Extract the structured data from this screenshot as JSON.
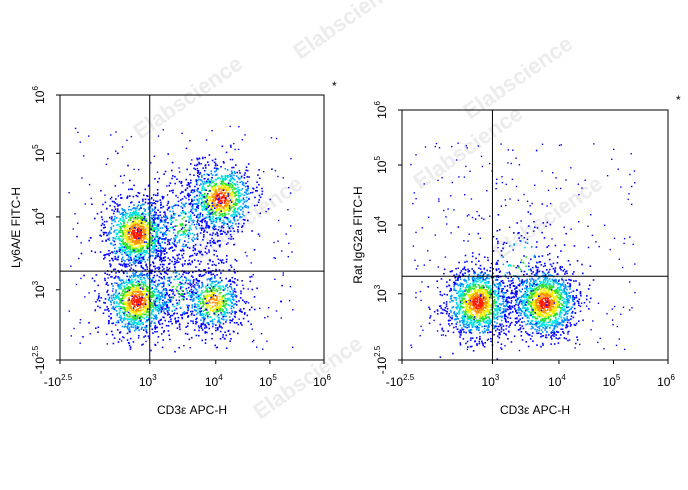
{
  "watermark": "Elabscience",
  "colors": {
    "density": [
      "#0000ff",
      "#0090ff",
      "#00e0e0",
      "#30e030",
      "#f0f000",
      "#ff9000",
      "#ff1a00"
    ],
    "frame": "#000000"
  },
  "chart_data": [
    {
      "type": "scatter",
      "subtype": "flow-cytometry-density-dot-plot",
      "title": "",
      "xlabel": "CD3ε APC-H",
      "ylabel": "Ly6A/E FITC-H",
      "x_scale": "biexponential",
      "y_scale": "biexponential",
      "x_ticks": [
        {
          "base": "-10",
          "exp": "2.5"
        },
        {
          "base": "10",
          "exp": "3"
        },
        {
          "base": "10",
          "exp": "4"
        },
        {
          "base": "10",
          "exp": "5"
        },
        {
          "base": "10",
          "exp": "6"
        }
      ],
      "y_ticks": [
        {
          "base": "-10",
          "exp": "2.5"
        },
        {
          "base": "10",
          "exp": "3"
        },
        {
          "base": "10",
          "exp": "4"
        },
        {
          "base": "10",
          "exp": "5"
        },
        {
          "base": "10",
          "exp": "6"
        }
      ],
      "x_range": [
        -316,
        1000000
      ],
      "y_range": [
        -316,
        1000000
      ],
      "quadrant_gate": {
        "x": 1000,
        "y": 1800
      },
      "corner_mark": "*",
      "populations": [
        {
          "x": 150,
          "y": 6000,
          "count": 1100,
          "peak": "high"
        },
        {
          "x": 150,
          "y": 150,
          "count": 1100,
          "peak": "high"
        },
        {
          "x": 12000,
          "y": 20000,
          "count": 900,
          "peak": "high"
        },
        {
          "x": 9000,
          "y": 150,
          "count": 650,
          "peak": "medium"
        },
        {
          "x": 3000,
          "y": 8000,
          "count": 450,
          "peak": "low"
        },
        {
          "x": 2500,
          "y": 600,
          "count": 250,
          "peak": "low"
        }
      ]
    },
    {
      "type": "scatter",
      "subtype": "flow-cytometry-density-dot-plot",
      "title": "",
      "xlabel": "CD3ε APC-H",
      "ylabel": "Rat IgG2a FITC-H",
      "x_scale": "biexponential",
      "y_scale": "biexponential",
      "x_ticks": [
        {
          "base": "-10",
          "exp": "2.5"
        },
        {
          "base": "10",
          "exp": "3"
        },
        {
          "base": "10",
          "exp": "4"
        },
        {
          "base": "10",
          "exp": "5"
        },
        {
          "base": "10",
          "exp": "6"
        }
      ],
      "y_ticks": [
        {
          "base": "-10",
          "exp": "2.5"
        },
        {
          "base": "10",
          "exp": "3"
        },
        {
          "base": "10",
          "exp": "4"
        },
        {
          "base": "10",
          "exp": "5"
        },
        {
          "base": "10",
          "exp": "6"
        }
      ],
      "x_range": [
        -316,
        1000000
      ],
      "y_range": [
        -316,
        1000000
      ],
      "quadrant_gate": {
        "x": 1000,
        "y": 1800
      },
      "corner_mark": "*",
      "populations": [
        {
          "x": 120,
          "y": 200,
          "count": 1300,
          "peak": "high"
        },
        {
          "x": 6000,
          "y": 200,
          "count": 1300,
          "peak": "high"
        },
        {
          "x": 2500,
          "y": 3000,
          "count": 140,
          "peak": "low"
        }
      ]
    }
  ]
}
